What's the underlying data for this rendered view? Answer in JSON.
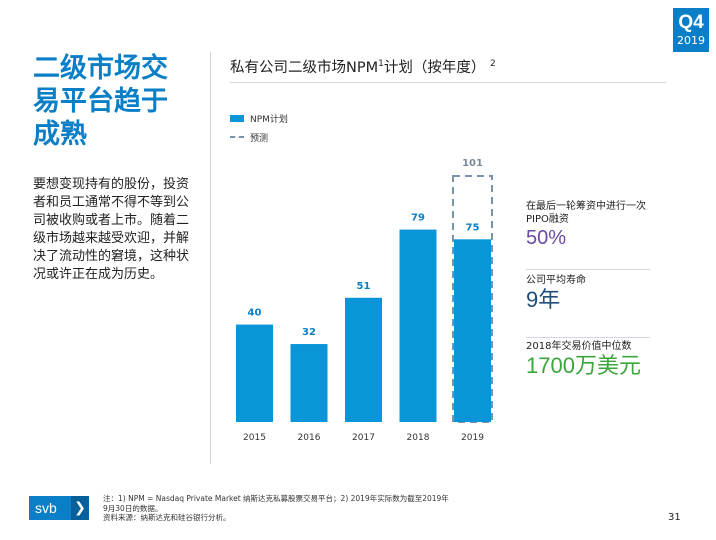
{
  "badge": {
    "quarter": "Q4",
    "year": "2019"
  },
  "headline": "二级市场交易平台趋于成熟",
  "body": "要想变现持有的股份，投资者和员工通常不得不等到公司被收购或者上市。随着二级市场越来越受欢迎，并解决了流动性的窘境，这种状况或许正在成为历史。",
  "chart_title": {
    "prefix": "私有公司二级市场NPM",
    "sup1": "1",
    "suffix": "计划（按年度）",
    "sup2": "2"
  },
  "legend": {
    "actual": "NPM计划",
    "forecast": "预测"
  },
  "colors": {
    "accent": "#0a7fc7",
    "bar": "#0a95d9",
    "forecast_border": "#7a93a8",
    "purple": "#6b4aa3",
    "green": "#3ca63c"
  },
  "chart_data": {
    "type": "bar",
    "categories": [
      "2015",
      "2016",
      "2017",
      "2018",
      "2019"
    ],
    "values": [
      40,
      32,
      51,
      79,
      75
    ],
    "forecast": {
      "category": "2019",
      "value": 101
    },
    "title": "私有公司二级市场NPM计划（按年度）",
    "xlabel": "",
    "ylabel": "",
    "ylim": [
      0,
      101
    ],
    "grid": false,
    "legend_position": "top-left"
  },
  "stats": [
    {
      "label": "在最后一轮筹资中进行一次PIPO融资",
      "value": "50%",
      "color": "#6b4aa3"
    },
    {
      "label": "公司平均寿命",
      "value": "9年",
      "color": "#1f4f7a"
    },
    {
      "label": "2018年交易价值中位数",
      "value": "1700万美元",
      "color": "#3ca63c"
    }
  ],
  "footer": {
    "logo": "svb",
    "logo_chevron": "❯",
    "note_line1": "注：1) NPM = Nasdaq Private Market 纳斯达克私募股票交易平台；2) 2019年实际数为截至2019年",
    "note_line2": "9月30日的数据。",
    "note_line3": "资料来源：纳斯达克和硅谷银行分析。",
    "page": "31"
  }
}
